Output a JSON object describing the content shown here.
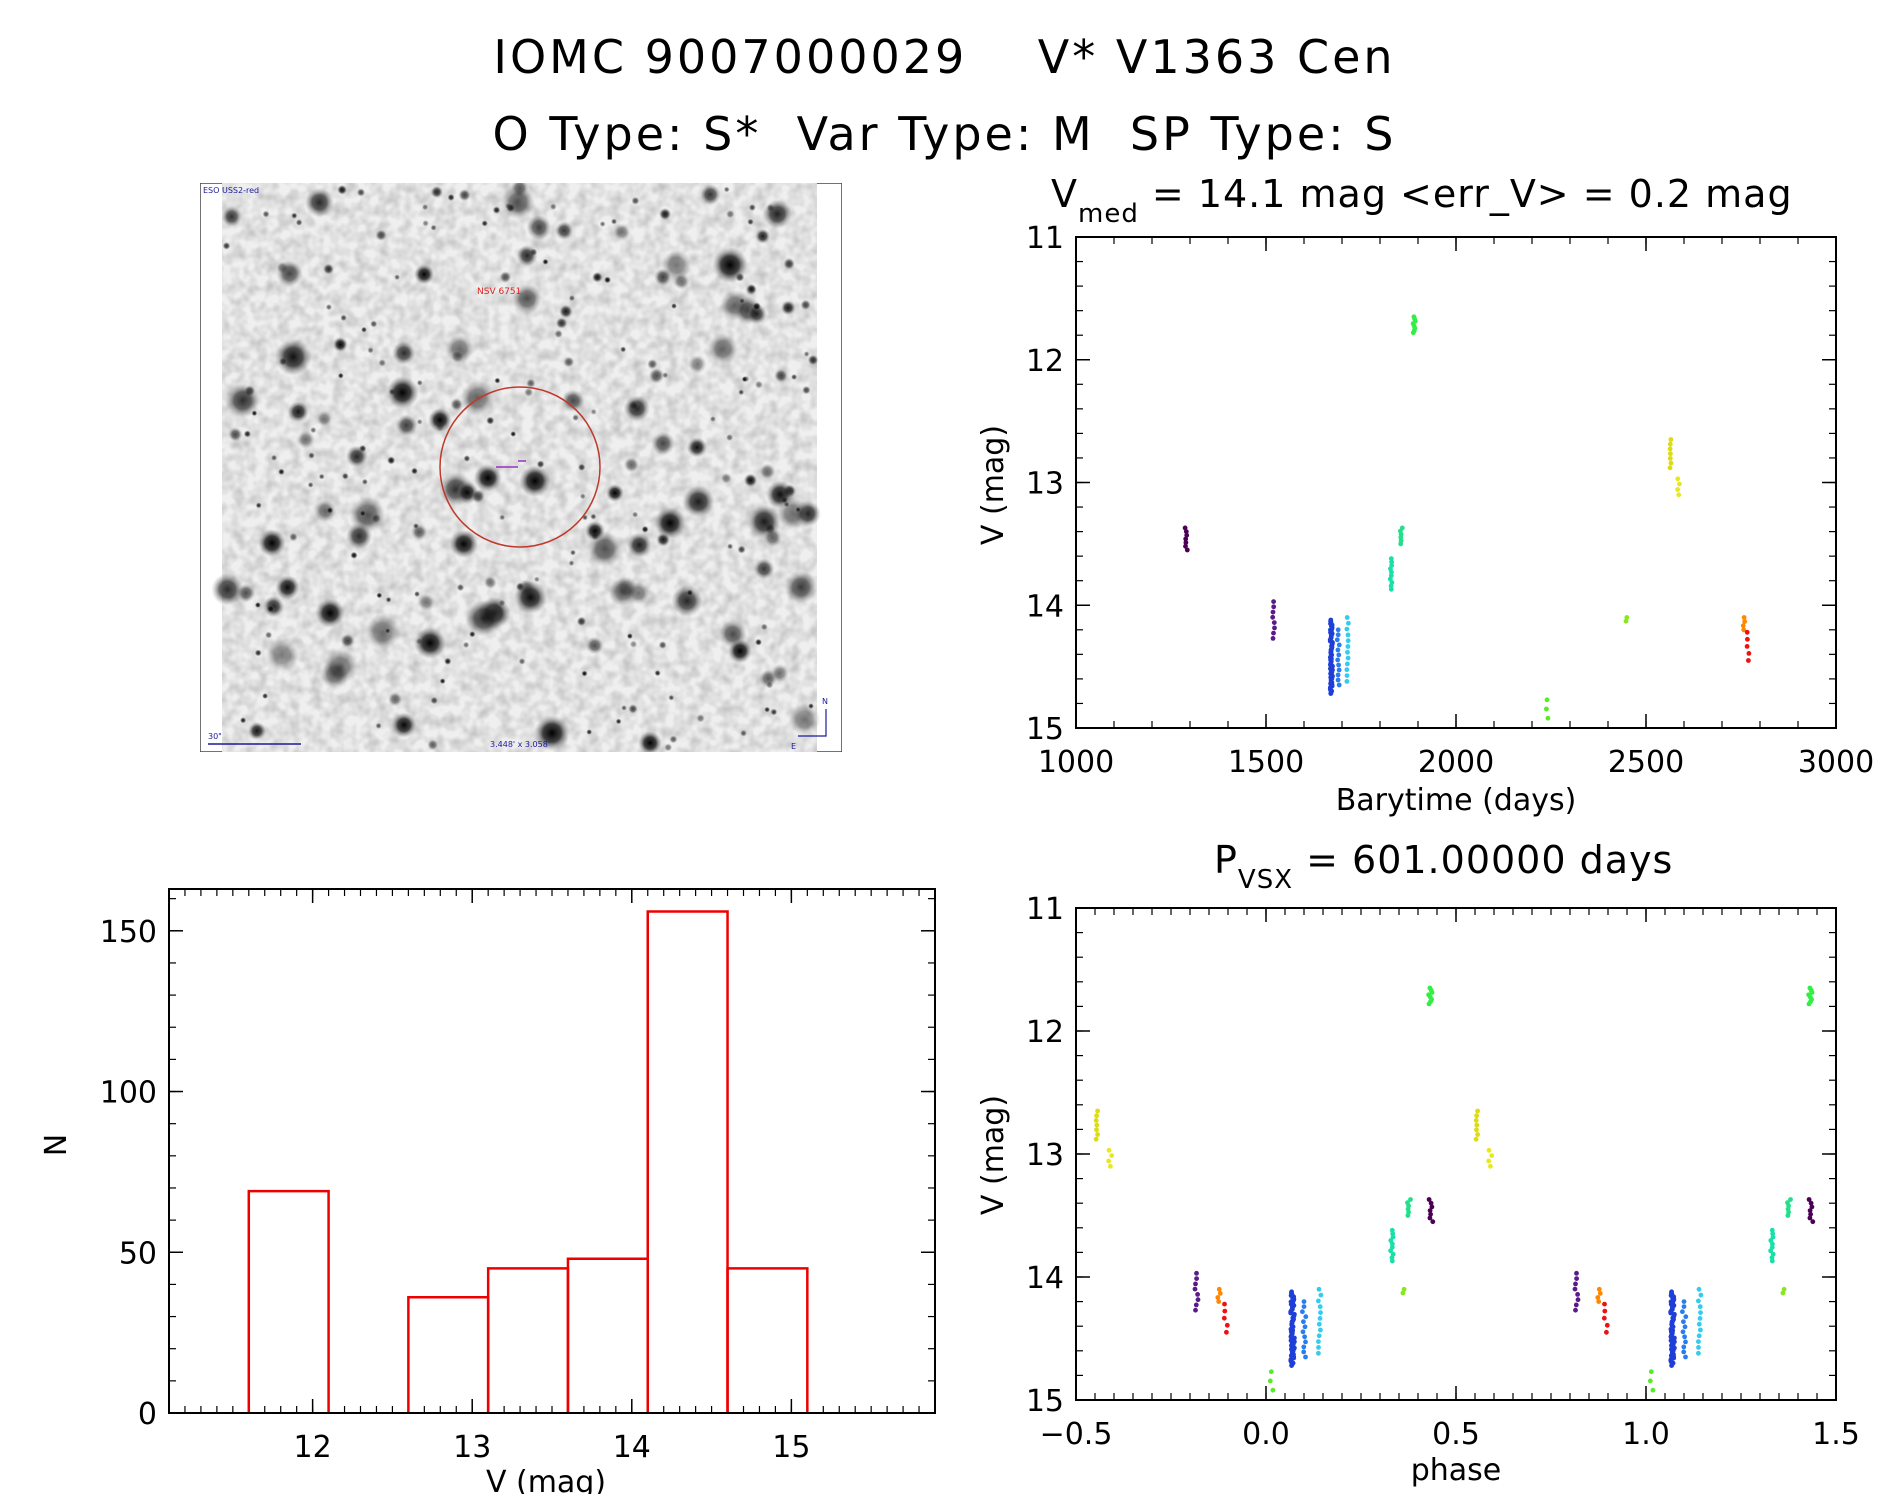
{
  "header": {
    "line1": "IOMC 9007000029    V* V1363 Cen",
    "line2": "O Type: S*  Var Type: M  SP Type: S"
  },
  "sky_image": {
    "top_label": "ESO USS2-red",
    "target_label": "NSV 6751",
    "scale_label": "30\"",
    "size_label": "3.448' x 3.058'",
    "north_label": "N",
    "east_label": "E"
  },
  "chart_data": [
    {
      "id": "lightcurve",
      "type": "scatter",
      "title_prefix": "V",
      "title_sub": "med",
      "title_rest": " = 14.1 mag <err_V> = 0.2 mag",
      "xlabel": "Barytime (days)",
      "ylabel": "V (mag)",
      "xlim": [
        1000,
        3000
      ],
      "ylim": [
        15,
        11
      ],
      "xticks": [
        1000,
        1500,
        2000,
        2500,
        3000
      ],
      "yticks": [
        11,
        12,
        13,
        14,
        15
      ],
      "groups": [
        {
          "color": "#4b0055",
          "t": 1290,
          "ymin": 13.37,
          "ymax": 13.55,
          "n": 7
        },
        {
          "color": "#5a1a8a",
          "t": 1520,
          "ymin": 13.97,
          "ymax": 14.27,
          "n": 8
        },
        {
          "color": "#1f3fd8",
          "t": 1672,
          "ymin": 14.12,
          "ymax": 14.72,
          "n": 60
        },
        {
          "color": "#2a7df0",
          "t": 1690,
          "ymin": 14.2,
          "ymax": 14.65,
          "n": 12
        },
        {
          "color": "#33ccee",
          "t": 1714,
          "ymin": 14.1,
          "ymax": 14.62,
          "n": 12
        },
        {
          "color": "#19e0a8",
          "t": 1830,
          "ymin": 13.62,
          "ymax": 13.87,
          "n": 10
        },
        {
          "color": "#22e08a",
          "t": 1856,
          "ymin": 13.37,
          "ymax": 13.5,
          "n": 6
        },
        {
          "color": "#33ee44",
          "t": 1890,
          "ymin": 11.65,
          "ymax": 11.78,
          "n": 8
        },
        {
          "color": "#55ee22",
          "t": 2240,
          "ymin": 14.77,
          "ymax": 14.92,
          "n": 3
        },
        {
          "color": "#88e820",
          "t": 2450,
          "ymin": 14.1,
          "ymax": 14.13,
          "n": 2
        },
        {
          "color": "#dcdc10",
          "t": 2565,
          "ymin": 12.65,
          "ymax": 12.88,
          "n": 7
        },
        {
          "color": "#e8e820",
          "t": 2585,
          "ymin": 12.97,
          "ymax": 13.1,
          "n": 4
        },
        {
          "color": "#ff8800",
          "t": 2758,
          "ymin": 14.1,
          "ymax": 14.2,
          "n": 4
        },
        {
          "color": "#ee1111",
          "t": 2768,
          "ymin": 14.22,
          "ymax": 14.45,
          "n": 5
        }
      ]
    },
    {
      "id": "phased",
      "type": "scatter",
      "title_prefix": "P",
      "title_sub": "VSX",
      "title_rest": " = 601.00000 days",
      "xlabel": "phase",
      "ylabel": "V (mag)",
      "period": 601,
      "t0": 1630,
      "xlim": [
        -0.5,
        1.5
      ],
      "ylim": [
        15,
        11
      ],
      "xticks": [
        -0.5,
        0.0,
        0.5,
        1.0,
        1.5
      ],
      "xtick_labels": [
        "−0.5",
        "0.0",
        "0.5",
        "1.0",
        "1.5"
      ],
      "yticks": [
        11,
        12,
        13,
        14,
        15
      ]
    },
    {
      "id": "histogram",
      "type": "bar",
      "xlabel": "V (mag)",
      "ylabel": "N",
      "xlim": [
        11.1,
        15.9
      ],
      "ylim": [
        0,
        163
      ],
      "xticks": [
        12,
        13,
        14,
        15
      ],
      "yticks": [
        0,
        50,
        100,
        150
      ],
      "bar_color": "#ee0000",
      "bins": [
        {
          "x0": 11.6,
          "x1": 12.1,
          "count": 69
        },
        {
          "x0": 12.1,
          "x1": 12.6,
          "count": 0
        },
        {
          "x0": 12.6,
          "x1": 13.1,
          "count": 36
        },
        {
          "x0": 13.1,
          "x1": 13.6,
          "count": 45
        },
        {
          "x0": 13.6,
          "x1": 14.1,
          "count": 48
        },
        {
          "x0": 14.1,
          "x1": 14.6,
          "count": 156
        },
        {
          "x0": 14.6,
          "x1": 15.1,
          "count": 45
        }
      ]
    }
  ]
}
